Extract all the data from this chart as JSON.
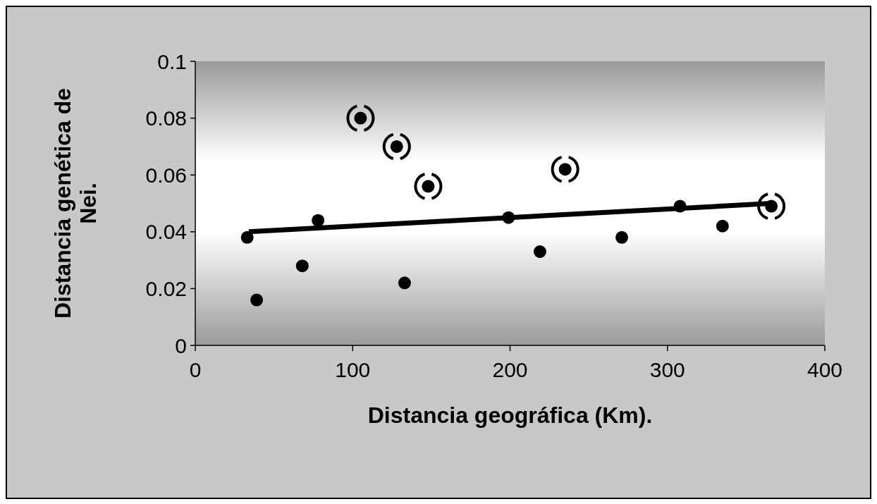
{
  "chart_data": {
    "type": "scatter",
    "xlabel": "Distancia geográfica (Km).",
    "ylabel": "Distancia genética de Nei.",
    "xlim": [
      0,
      400
    ],
    "ylim": [
      0,
      0.1
    ],
    "xticks": [
      0,
      100,
      200,
      300,
      400
    ],
    "yticks": [
      0,
      0.02,
      0.04,
      0.06,
      0.08,
      0.1
    ],
    "marker": "circle",
    "series": [
      {
        "color": "#000000",
        "x": [
          33,
          39,
          68,
          78,
          133,
          199,
          219,
          271,
          308,
          335
        ],
        "values": [
          0.038,
          0.016,
          0.028,
          0.044,
          0.022,
          0.045,
          0.033,
          0.038,
          0.049,
          0.042
        ]
      },
      {
        "color": "#000000",
        "x": [
          105,
          128,
          148,
          235,
          366
        ],
        "values": [
          0.08,
          0.07,
          0.056,
          0.062,
          0.049
        ]
      },
      {
        "type": "line",
        "marker": "none",
        "color": "#000000",
        "x": [
          34,
          366
        ],
        "values": [
          0.04,
          0.05
        ]
      }
    ]
  }
}
